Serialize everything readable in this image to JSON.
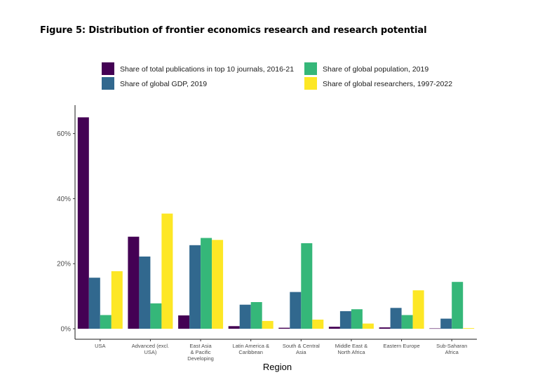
{
  "figure_title": "Figure 5: Distribution of frontier economics research and research potential",
  "chart_data": {
    "type": "bar",
    "title": "",
    "xlabel": "Region",
    "ylabel": "",
    "ylim": [
      0,
      0.68
    ],
    "yticks": [
      0,
      0.2,
      0.4,
      0.6
    ],
    "ytick_labels": [
      "0%",
      "20%",
      "40%",
      "60%"
    ],
    "legend_position": "top",
    "categories": [
      [
        "USA"
      ],
      [
        "Advanced (excl.",
        "USA)"
      ],
      [
        "East Asia",
        "& Pacific",
        "Developing"
      ],
      [
        "Latin America &",
        "Caribbean"
      ],
      [
        "South & Central",
        "Asia"
      ],
      [
        "Middle East &",
        "North Africa"
      ],
      [
        "Eastern Europe"
      ],
      [
        "Sub-Saharan",
        "Africa"
      ]
    ],
    "series": [
      {
        "name": "Share of total publications in top 10 journals, 2016-21",
        "color": "#440154",
        "values": [
          0.65,
          0.283,
          0.041,
          0.008,
          0.003,
          0.006,
          0.004,
          0.001
        ]
      },
      {
        "name": "Share of global GDP, 2019",
        "color": "#31688e",
        "values": [
          0.157,
          0.222,
          0.257,
          0.074,
          0.113,
          0.054,
          0.064,
          0.031
        ]
      },
      {
        "name": "Share of global population, 2019",
        "color": "#35b779",
        "values": [
          0.042,
          0.078,
          0.279,
          0.082,
          0.263,
          0.06,
          0.042,
          0.144
        ]
      },
      {
        "name": "Share of global researchers, 1997-2022",
        "color": "#fde725",
        "values": [
          0.177,
          0.354,
          0.273,
          0.024,
          0.028,
          0.016,
          0.118,
          0.002
        ]
      }
    ]
  }
}
